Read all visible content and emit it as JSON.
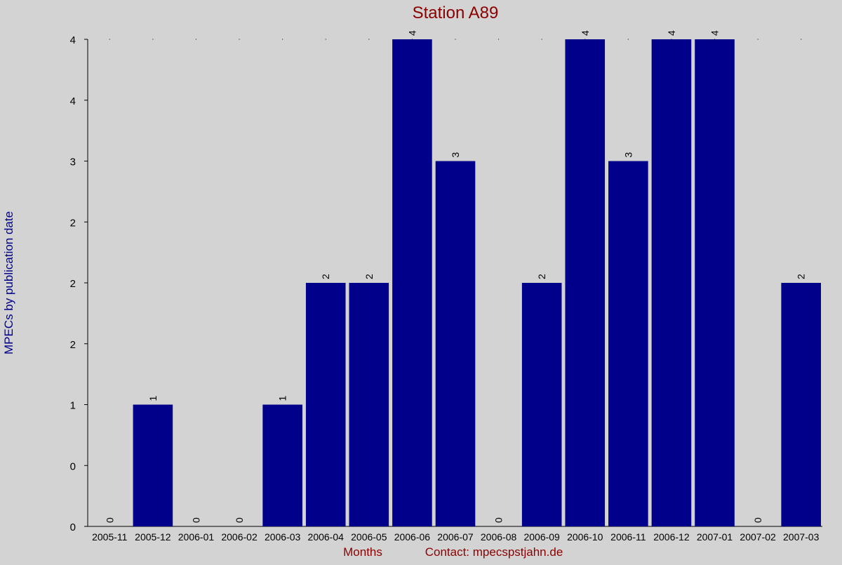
{
  "chart_data": {
    "type": "bar",
    "title": "Station A89",
    "xlabel": "Months",
    "ylabel": "MPECs by publication date",
    "footer_contact": "Contact: mpecspstjahn.de",
    "categories": [
      "2005-11",
      "2005-12",
      "2006-01",
      "2006-02",
      "2006-03",
      "2006-04",
      "2006-05",
      "2006-06",
      "2006-07",
      "2006-08",
      "2006-09",
      "2006-10",
      "2006-11",
      "2006-12",
      "2007-01",
      "2007-02",
      "2007-03"
    ],
    "values": [
      0,
      1,
      0,
      0,
      1,
      2,
      2,
      4,
      3,
      0,
      2,
      4,
      3,
      4,
      4,
      0,
      2
    ],
    "data_labels": [
      "0",
      "1",
      "0",
      "0",
      "1",
      "2",
      "2",
      "4",
      "3",
      "0",
      "2",
      "4",
      "3",
      "4",
      "4",
      "0",
      "2"
    ],
    "y_ticks": [
      0,
      0.5,
      1,
      1.5,
      2,
      2.5,
      3,
      3.5,
      4
    ],
    "y_tick_labels": [
      "0",
      "0",
      "1",
      "2",
      "2",
      "2",
      "3",
      "4",
      "4"
    ],
    "ylim": [
      0,
      4
    ],
    "grid": false,
    "legend": "none",
    "colors": {
      "background": "#d3d3d3",
      "bar": "#00008b",
      "title": "#8b0000",
      "ylabel": "#00008b",
      "axis": "#000000"
    }
  }
}
